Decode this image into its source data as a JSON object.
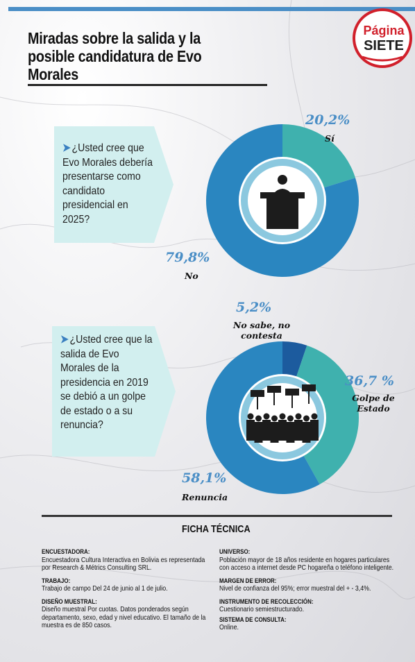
{
  "header": {
    "title": "Miradas sobre la salida y la posible candidatura de Evo Morales",
    "logo_text_top": "Página",
    "logo_text_bottom": "SIETE"
  },
  "questions": [
    {
      "text": "¿Usted cree que Evo Morales debería presentarse como candidato presidencial en 2025?",
      "icon": "podium-icon"
    },
    {
      "text": "¿Usted cree que la salida de Evo Morales de la presidencia en 2019 se debió a un golpe de estado o a su renuncia?",
      "icon": "protest-crowd-icon"
    }
  ],
  "chart_data": [
    {
      "type": "pie",
      "categories": [
        "Sí",
        "No"
      ],
      "values": [
        20.2,
        79.8
      ],
      "value_labels": [
        "20,2%",
        "79,8%"
      ],
      "colors": [
        "#3fb1ae",
        "#2a86c0"
      ]
    },
    {
      "type": "pie",
      "categories": [
        "No sabe, no contesta",
        "Golpe de Estado",
        "Renuncia"
      ],
      "values": [
        5.2,
        36.7,
        58.1
      ],
      "value_labels": [
        "5,2%",
        "36,7 %",
        "58,1%"
      ],
      "colors": [
        "#1c5b9e",
        "#3fb1ae",
        "#2a86c0"
      ]
    }
  ],
  "ficha": {
    "title": "FICHA TÉCNICA",
    "encuestadora_label": "ENCUESTADORA:",
    "encuestadora": "Encuestadora Cultura Interactiva en Bolivia es representada por Research & Métrics Consulting SRL.",
    "trabajo_label": "TRABAJO:",
    "trabajo": "Trabajo de campo Del 24 de junio al 1 de julio.",
    "diseno_label": "DISEÑO MUESTRAL:",
    "diseno": "Diseño muestral Por cuotas. Datos ponderados según departamento, sexo, edad y nivel educativo. El tamaño de la muestra es de 850 casos.",
    "universo_label": "UNIVERSO:",
    "universo": "Población mayor de 18 años residente en hogares particulares con acceso a internet desde PC hogareña o teléfono inteligente.",
    "margen_label": "MARGEN DE ERROR:",
    "margen": "Nivel de confianza del 95%; error muestral del + - 3,4%.",
    "instrumento_label": "INSTRUMENTO DE RECOLECCIÓN:",
    "instrumento": "Cuestionario semiestructurado.",
    "sistema_label": "SISTEMA DE CONSULTA:",
    "sistema": "Online."
  }
}
